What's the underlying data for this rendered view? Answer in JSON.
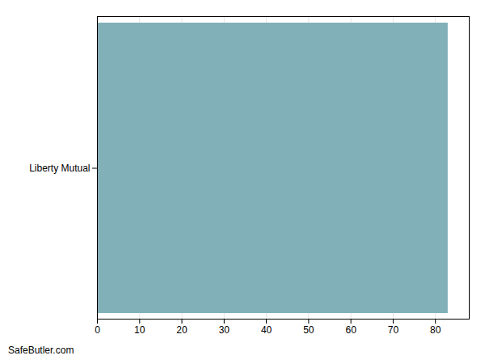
{
  "chart_data": {
    "type": "bar",
    "orientation": "horizontal",
    "categories": [
      "Liberty Mutual"
    ],
    "values": [
      83
    ],
    "color": "#82b0b8",
    "xlim": [
      0,
      88
    ],
    "xticks": [
      0,
      10,
      20,
      30,
      40,
      50,
      60,
      70,
      80
    ],
    "grid": true,
    "annotations": [
      "SafeButler.com"
    ]
  }
}
